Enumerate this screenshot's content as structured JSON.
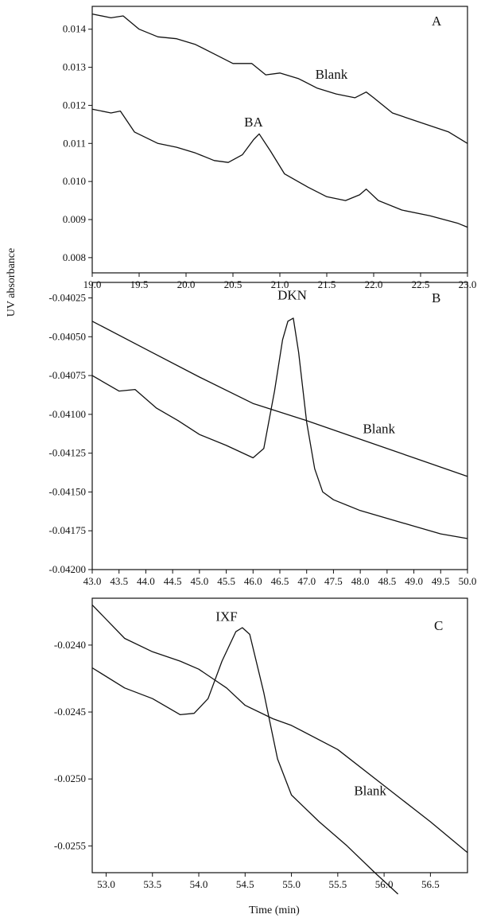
{
  "ylabel": "UV absorbance",
  "xlabel": "Time (min)",
  "chart_data": [
    {
      "type": "line",
      "panel": "A",
      "xlim": [
        19.0,
        23.0
      ],
      "ylim": [
        0.0076,
        0.0146
      ],
      "x_ticks": [
        19.0,
        19.5,
        20.0,
        20.5,
        21.0,
        21.5,
        22.0,
        22.5,
        23.0
      ],
      "x_tick_labels": [
        "19.0",
        "19.5",
        "20.0",
        "20.5",
        "21.0",
        "21.5",
        "22.0",
        "22.5",
        "23.0"
      ],
      "y_ticks": [
        0.008,
        0.009,
        0.01,
        0.011,
        0.012,
        0.013,
        0.014
      ],
      "y_tick_labels": [
        "0.008",
        "0.009",
        "0.010",
        "0.011",
        "0.012",
        "0.013",
        "0.014"
      ],
      "series": [
        {
          "name": "Blank",
          "x": [
            19.0,
            19.2,
            19.33,
            19.5,
            19.7,
            19.9,
            20.1,
            20.3,
            20.5,
            20.7,
            20.85,
            21.0,
            21.2,
            21.4,
            21.6,
            21.8,
            21.92,
            22.0,
            22.2,
            22.5,
            22.8,
            23.0
          ],
          "y": [
            0.0144,
            0.0143,
            0.01435,
            0.014,
            0.0138,
            0.01375,
            0.0136,
            0.01335,
            0.0131,
            0.0131,
            0.0128,
            0.01285,
            0.0127,
            0.01245,
            0.0123,
            0.0122,
            0.01235,
            0.0122,
            0.0118,
            0.01155,
            0.0113,
            0.011
          ]
        },
        {
          "name": "BA",
          "x": [
            19.0,
            19.2,
            19.3,
            19.45,
            19.7,
            19.9,
            20.1,
            20.3,
            20.45,
            20.6,
            20.72,
            20.78,
            20.9,
            21.05,
            21.3,
            21.5,
            21.7,
            21.85,
            21.92,
            22.05,
            22.3,
            22.6,
            22.9,
            23.0
          ],
          "y": [
            0.0119,
            0.0118,
            0.01185,
            0.0113,
            0.011,
            0.0109,
            0.01075,
            0.01055,
            0.0105,
            0.0107,
            0.0111,
            0.01125,
            0.0108,
            0.0102,
            0.00985,
            0.0096,
            0.0095,
            0.00965,
            0.0098,
            0.0095,
            0.00925,
            0.0091,
            0.0089,
            0.0088
          ]
        }
      ],
      "annotations": [
        {
          "text": "Blank",
          "x": 21.55,
          "y": 0.0127
        },
        {
          "text": "BA",
          "x": 20.72,
          "y": 0.01145
        }
      ],
      "panel_label": "A"
    },
    {
      "type": "line",
      "panel": "B",
      "xlim": [
        43.0,
        50.0
      ],
      "ylim": [
        -0.042,
        -0.04015
      ],
      "x_ticks": [
        43.0,
        43.5,
        44.0,
        44.5,
        45.0,
        45.5,
        46.0,
        46.5,
        47.0,
        47.5,
        48.0,
        48.5,
        49.0,
        49.5,
        50.0
      ],
      "x_tick_labels": [
        "43.0",
        "43.5",
        "44.0",
        "44.5",
        "45.0",
        "45.5",
        "46.0",
        "46.5",
        "47.0",
        "47.5",
        "48.0",
        "48.5",
        "49.0",
        "49.5",
        "50.0"
      ],
      "y_ticks": [
        -0.04025,
        -0.0405,
        -0.04075,
        -0.041,
        -0.04125,
        -0.0415,
        -0.04175,
        -0.042
      ],
      "y_tick_labels": [
        "-0.04025",
        "-0.04050",
        "-0.04075",
        "-0.04100",
        "-0.04125",
        "-0.04150",
        "-0.04175",
        "-0.04200"
      ],
      "series": [
        {
          "name": "Blank",
          "x": [
            43.0,
            44.0,
            45.0,
            46.0,
            47.0,
            48.0,
            49.0,
            50.0
          ],
          "y": [
            -0.0404,
            -0.04058,
            -0.04076,
            -0.04093,
            -0.04104,
            -0.04116,
            -0.04128,
            -0.0414
          ]
        },
        {
          "name": "DKN",
          "x": [
            43.0,
            43.5,
            43.8,
            44.2,
            44.6,
            45.0,
            45.5,
            46.0,
            46.2,
            46.4,
            46.55,
            46.65,
            46.75,
            46.85,
            47.0,
            47.15,
            47.3,
            47.5,
            48.0,
            48.5,
            49.0,
            49.5,
            50.0
          ],
          "y": [
            -0.04075,
            -0.04085,
            -0.04084,
            -0.04096,
            -0.04104,
            -0.04113,
            -0.0412,
            -0.04128,
            -0.04122,
            -0.04085,
            -0.04052,
            -0.0404,
            -0.04038,
            -0.0406,
            -0.04105,
            -0.04135,
            -0.0415,
            -0.04155,
            -0.04162,
            -0.04167,
            -0.04172,
            -0.04177,
            -0.0418
          ]
        }
      ],
      "annotations": [
        {
          "text": "DKN",
          "x": 46.73,
          "y": -0.04026
        },
        {
          "text": "Blank",
          "x": 48.35,
          "y": -0.04112
        }
      ],
      "panel_label": "B"
    },
    {
      "type": "line",
      "panel": "C",
      "xlim": [
        52.85,
        56.9
      ],
      "ylim": [
        -0.0257,
        -0.02365
      ],
      "x_ticks": [
        53.0,
        53.5,
        54.0,
        54.5,
        55.0,
        55.5,
        56.0,
        56.5
      ],
      "x_tick_labels": [
        "53.0",
        "53.5",
        "54.0",
        "54.5",
        "55.0",
        "55.5",
        "56.0",
        "56.5"
      ],
      "y_ticks": [
        -0.024,
        -0.0245,
        -0.025,
        -0.0255
      ],
      "y_tick_labels": [
        "-0.0240",
        "-0.0245",
        "-0.0250",
        "-0.0255"
      ],
      "series": [
        {
          "name": "Blank",
          "x": [
            52.85,
            53.2,
            53.5,
            53.8,
            54.0,
            54.15,
            54.3,
            54.5,
            54.8,
            55.0,
            55.5,
            56.0,
            56.5,
            56.9
          ],
          "y": [
            -0.0237,
            -0.02395,
            -0.02405,
            -0.02412,
            -0.02418,
            -0.02425,
            -0.02432,
            -0.02445,
            -0.02455,
            -0.0246,
            -0.02478,
            -0.02505,
            -0.02532,
            -0.02555
          ]
        },
        {
          "name": "IXF",
          "x": [
            52.85,
            53.2,
            53.5,
            53.8,
            53.95,
            54.1,
            54.25,
            54.4,
            54.47,
            54.55,
            54.7,
            54.85,
            55.0,
            55.3,
            55.6,
            55.9,
            56.15
          ],
          "y": [
            -0.02417,
            -0.02432,
            -0.0244,
            -0.02452,
            -0.02451,
            -0.0244,
            -0.02412,
            -0.0239,
            -0.02387,
            -0.02392,
            -0.02435,
            -0.02485,
            -0.02512,
            -0.02532,
            -0.0255,
            -0.0257,
            -0.02586
          ]
        }
      ],
      "annotations": [
        {
          "text": "IXF",
          "x": 54.3,
          "y": -0.02382
        },
        {
          "text": "Blank",
          "x": 55.85,
          "y": -0.02512
        }
      ],
      "panel_label": "C"
    }
  ]
}
